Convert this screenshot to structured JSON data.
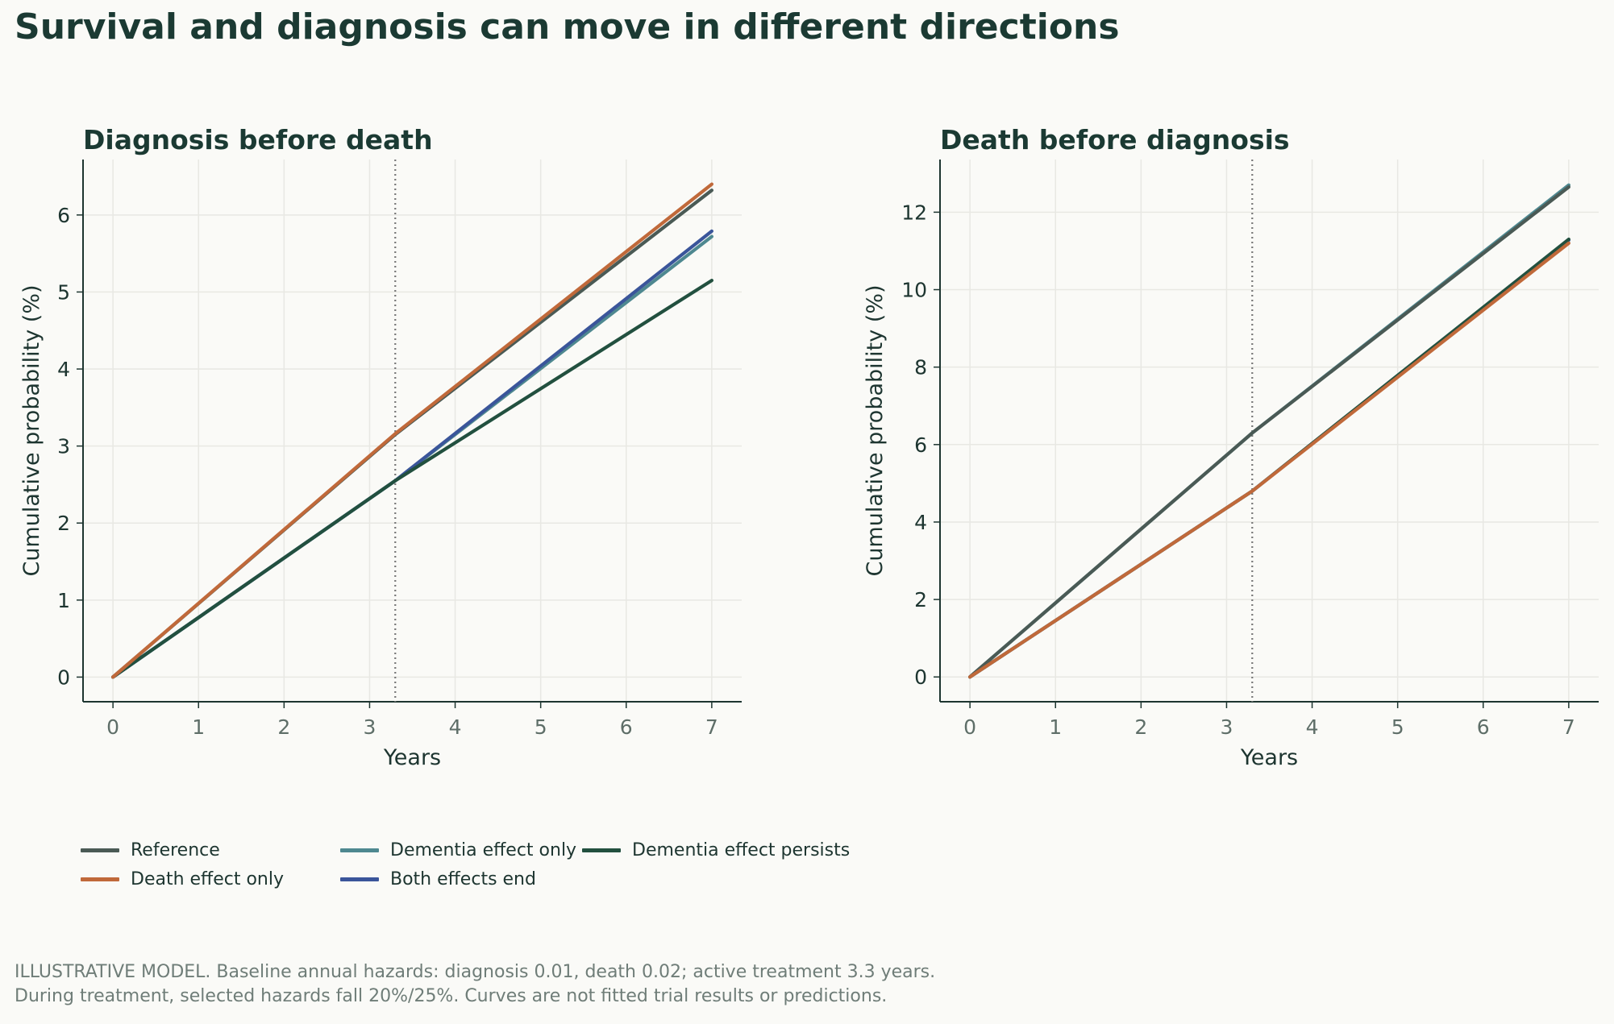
{
  "title": "Survival and diagnosis can move in different directions",
  "colors": {
    "Reference": "#4a5a55",
    "Death effect only": "#c0693a",
    "Dementia effect only": "#4e8890",
    "Both effects end": "#3a559a",
    "Dementia effect persists": "#22503f",
    "grid": "#e8e8e3",
    "axis": "#1d3530",
    "vline": "#777777"
  },
  "legend": [
    "Reference",
    "Dementia effect only",
    "Dementia effect persists",
    "Death effect only",
    "Both effects end"
  ],
  "footnote": {
    "line1": "ILLUSTRATIVE MODEL. Baseline annual hazards: diagnosis 0.01, death 0.02; active treatment 3.3 years.",
    "line2": "During treatment, selected hazards fall 20%/25%. Curves are not fitted trial results or predictions."
  },
  "chart_data": [
    {
      "type": "line",
      "title": "Diagnosis before death",
      "xlabel": "Years",
      "ylabel": "Cumulative probability (%)",
      "xlim": [
        -0.35,
        7.35
      ],
      "ylim": [
        -0.32,
        6.72
      ],
      "xticks": [
        0,
        1,
        2,
        3,
        4,
        5,
        6,
        7
      ],
      "yticks": [
        0,
        1,
        2,
        3,
        4,
        5,
        6
      ],
      "vline": 3.3,
      "grid": true,
      "series": [
        {
          "name": "Reference",
          "x": [
            0,
            3.3,
            7
          ],
          "y": [
            0,
            3.15,
            6.32
          ]
        },
        {
          "name": "Death effect only",
          "x": [
            0,
            3.3,
            7
          ],
          "y": [
            0,
            3.16,
            6.4
          ]
        },
        {
          "name": "Dementia effect only",
          "x": [
            0,
            3.3,
            7
          ],
          "y": [
            0,
            2.55,
            5.72
          ]
        },
        {
          "name": "Both effects end",
          "x": [
            0,
            3.3,
            7
          ],
          "y": [
            0,
            2.55,
            5.79
          ]
        },
        {
          "name": "Dementia effect persists",
          "x": [
            0,
            3.3,
            7
          ],
          "y": [
            0,
            2.55,
            5.15
          ]
        }
      ]
    },
    {
      "type": "line",
      "title": "Death before diagnosis",
      "xlabel": "Years",
      "ylabel": "Cumulative probability (%)",
      "xlim": [
        -0.35,
        7.35
      ],
      "ylim": [
        -0.64,
        13.36
      ],
      "xticks": [
        0,
        1,
        2,
        3,
        4,
        5,
        6,
        7
      ],
      "yticks": [
        0,
        2,
        4,
        6,
        8,
        10,
        12
      ],
      "vline": 3.3,
      "grid": true,
      "series": [
        {
          "name": "Reference",
          "x": [
            0,
            3.3,
            7
          ],
          "y": [
            0,
            6.3,
            12.65
          ]
        },
        {
          "name": "Dementia effect only",
          "x": [
            0,
            3.3,
            7
          ],
          "y": [
            0,
            6.3,
            12.7
          ]
        },
        {
          "name": "Death effect only",
          "x": [
            0,
            3.3,
            7
          ],
          "y": [
            0,
            4.8,
            11.2
          ]
        },
        {
          "name": "Both effects end",
          "x": [
            0,
            3.3,
            7
          ],
          "y": [
            0,
            4.8,
            11.28
          ]
        },
        {
          "name": "Dementia effect persists",
          "x": [
            0,
            3.3,
            7
          ],
          "y": [
            0,
            4.8,
            11.3
          ]
        }
      ]
    }
  ]
}
